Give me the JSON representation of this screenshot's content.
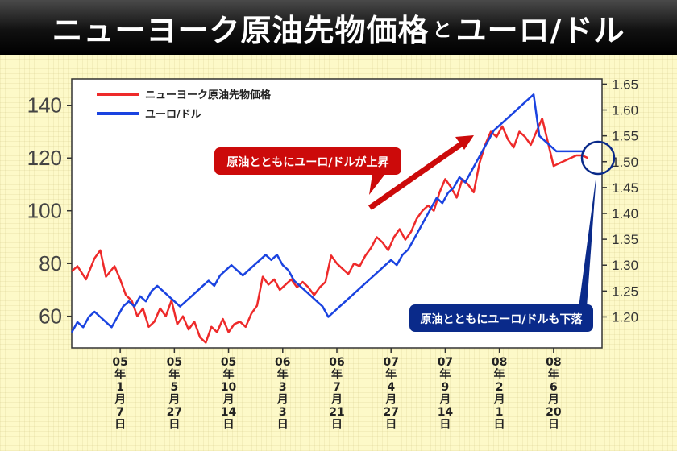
{
  "title": {
    "part1": "ニューヨーク原油先物価格",
    "part2": "と",
    "part3": "ユーロ/ドル"
  },
  "colors": {
    "oil": "#ee2a2a",
    "euro": "#1a43e0",
    "callout_up": "#cc0a0a",
    "callout_down": "#0a2a8a"
  },
  "legend": {
    "oil": "ニューヨーク原油先物価格",
    "euro": "ユーロ/ドル"
  },
  "callouts": {
    "up": "原油とともにユーロ/ドルが上昇",
    "down": "原油とともにユーロ/ドルも下落"
  },
  "chart_data": {
    "type": "line",
    "title": "ニューヨーク原油先物価格とユーロ/ドル",
    "x_tick_labels": [
      [
        "05",
        "年",
        "1",
        "月",
        "7",
        "日"
      ],
      [
        "05",
        "年",
        "5",
        "月",
        "27",
        "日"
      ],
      [
        "05",
        "年",
        "10",
        "月",
        "14",
        "日"
      ],
      [
        "06",
        "年",
        "3",
        "月",
        "3",
        "日"
      ],
      [
        "06",
        "年",
        "7",
        "月",
        "21",
        "日"
      ],
      [
        "07",
        "年",
        "4",
        "月",
        "27",
        "日"
      ],
      [
        "07",
        "年",
        "9",
        "月",
        "14",
        "日"
      ],
      [
        "08",
        "年",
        "2",
        "月",
        "1",
        "日"
      ],
      [
        "08",
        "年",
        "6",
        "月",
        "20",
        "日"
      ]
    ],
    "x_tick_positions": [
      4,
      23,
      42,
      61,
      80,
      99,
      118,
      137,
      156
    ],
    "xlim": [
      -13,
      173
    ],
    "y_left": {
      "ticks": [
        60,
        80,
        100,
        120,
        140
      ],
      "ylim": [
        48,
        150
      ]
    },
    "y_right": {
      "ticks": [
        "1.20",
        "1.25",
        "1.30",
        "1.35",
        "1.40",
        "1.45",
        "1.50",
        "1.55",
        "1.60",
        "1.65"
      ],
      "ylim": [
        1.14,
        1.66
      ]
    },
    "grid": false,
    "legend_position": "top-left",
    "series": [
      {
        "name": "ニューヨーク原油先物価格",
        "axis": "left",
        "x": [
          -13,
          -11,
          -8,
          -5,
          -3,
          -1,
          2,
          4,
          6,
          8,
          10,
          12,
          14,
          16,
          18,
          20,
          22,
          24,
          26,
          28,
          30,
          32,
          34,
          36,
          38,
          40,
          42,
          44,
          46,
          48,
          50,
          52,
          54,
          56,
          58,
          60,
          62,
          64,
          66,
          68,
          70,
          72,
          74,
          76,
          78,
          80,
          82,
          84,
          86,
          88,
          90,
          92,
          94,
          96,
          98,
          100,
          102,
          104,
          106,
          108,
          110,
          112,
          114,
          116,
          118,
          120,
          122,
          124,
          126,
          128,
          130,
          132,
          134,
          136,
          138,
          140,
          142,
          144,
          146,
          148,
          150,
          152,
          154,
          156,
          158,
          160,
          162,
          164,
          166,
          168
        ],
        "values": [
          77,
          79,
          74,
          82,
          85,
          75,
          79,
          74,
          68,
          66,
          60,
          63,
          56,
          58,
          63,
          60,
          66,
          57,
          60,
          55,
          58,
          52,
          50,
          56,
          54,
          59,
          54,
          57,
          58,
          56,
          61,
          64,
          75,
          72,
          74,
          70,
          72,
          74,
          71,
          73,
          71,
          68,
          71,
          73,
          83,
          80,
          78,
          76,
          80,
          79,
          83,
          86,
          90,
          88,
          85,
          90,
          93,
          89,
          92,
          97,
          100,
          102,
          100,
          107,
          112,
          109,
          105,
          112,
          110,
          107,
          118,
          125,
          130,
          128,
          132,
          127,
          124,
          130,
          128,
          125,
          130,
          135,
          126,
          117,
          118,
          119,
          120,
          121,
          121,
          120
        ]
      },
      {
        "name": "ユーロ/ドル",
        "axis": "right",
        "x": [
          -13,
          -11,
          -9,
          -7,
          -5,
          -3,
          -1,
          1,
          3,
          5,
          7,
          9,
          11,
          13,
          15,
          17,
          19,
          21,
          23,
          25,
          27,
          29,
          31,
          33,
          35,
          37,
          39,
          41,
          43,
          45,
          47,
          49,
          51,
          53,
          55,
          57,
          59,
          61,
          63,
          65,
          67,
          69,
          71,
          73,
          75,
          77,
          79,
          81,
          83,
          85,
          87,
          89,
          91,
          93,
          95,
          97,
          99,
          101,
          103,
          105,
          107,
          109,
          111,
          113,
          115,
          117,
          119,
          121,
          123,
          125,
          127,
          129,
          131,
          133,
          135,
          137,
          139,
          141,
          143,
          145,
          147,
          149,
          151,
          153,
          155,
          157,
          159,
          161,
          163,
          165,
          167
        ],
        "values": [
          1.17,
          1.19,
          1.18,
          1.2,
          1.21,
          1.2,
          1.19,
          1.18,
          1.2,
          1.22,
          1.23,
          1.22,
          1.24,
          1.23,
          1.25,
          1.26,
          1.25,
          1.24,
          1.23,
          1.22,
          1.23,
          1.24,
          1.25,
          1.26,
          1.27,
          1.26,
          1.28,
          1.29,
          1.3,
          1.29,
          1.28,
          1.29,
          1.3,
          1.31,
          1.32,
          1.31,
          1.32,
          1.3,
          1.29,
          1.27,
          1.26,
          1.25,
          1.24,
          1.23,
          1.22,
          1.2,
          1.21,
          1.22,
          1.23,
          1.24,
          1.25,
          1.26,
          1.27,
          1.28,
          1.29,
          1.3,
          1.31,
          1.3,
          1.32,
          1.33,
          1.35,
          1.37,
          1.39,
          1.41,
          1.43,
          1.42,
          1.44,
          1.45,
          1.47,
          1.46,
          1.48,
          1.5,
          1.52,
          1.54,
          1.56,
          1.57,
          1.58,
          1.59,
          1.6,
          1.61,
          1.62,
          1.63,
          1.55,
          1.54,
          1.53,
          1.52,
          1.52,
          1.52,
          1.52,
          1.52,
          1.52
        ]
      }
    ]
  }
}
